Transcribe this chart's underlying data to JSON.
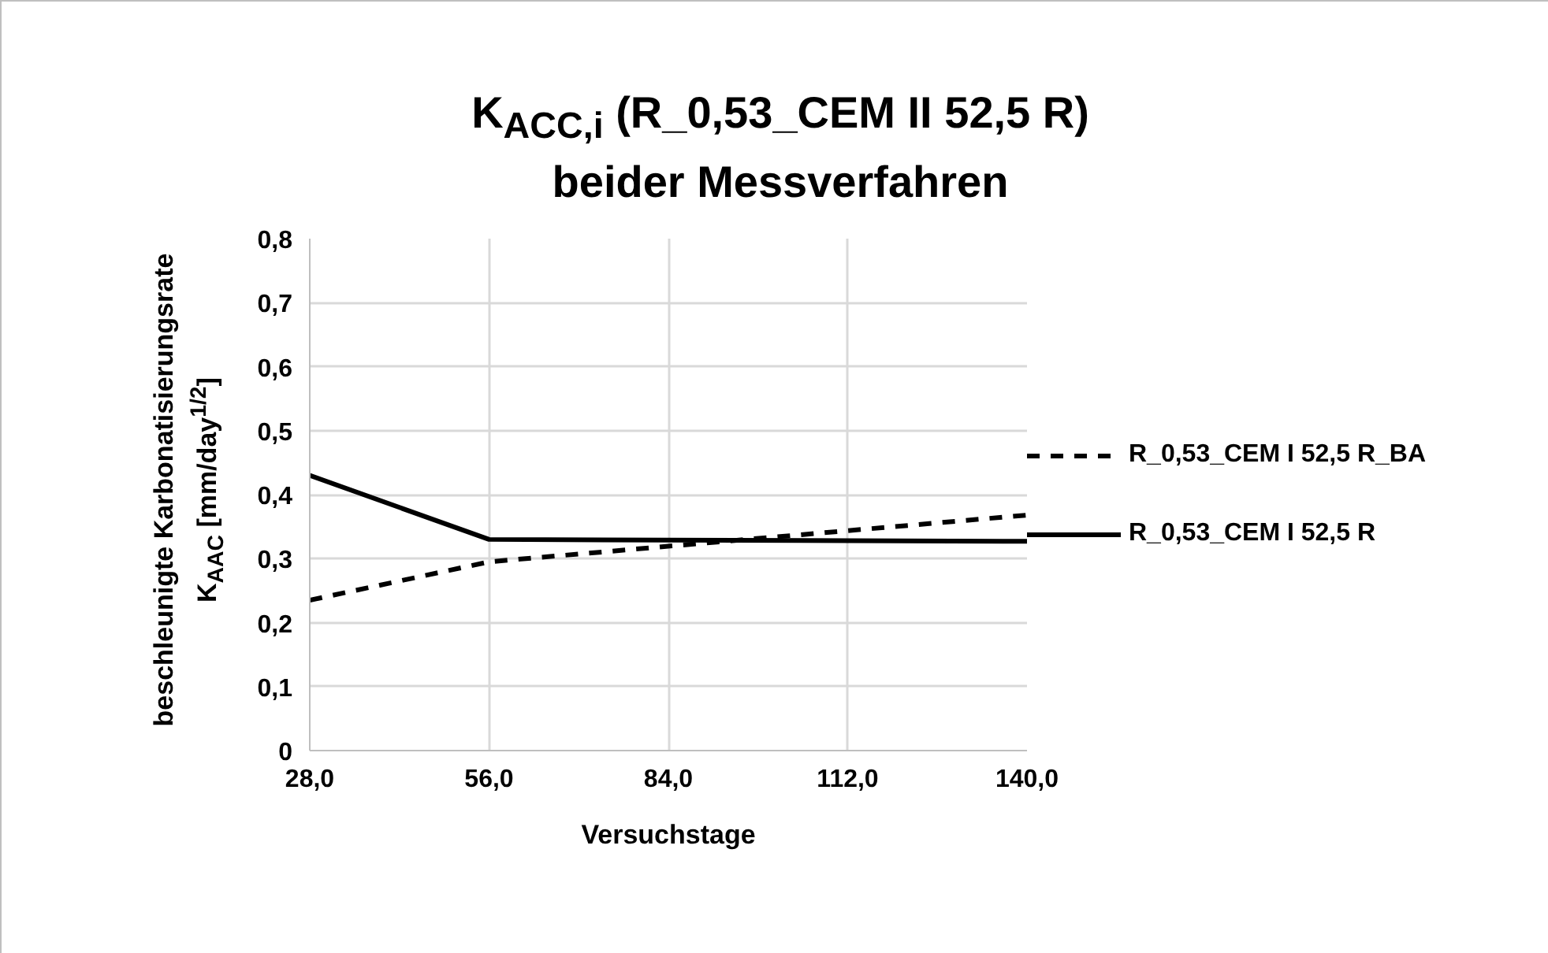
{
  "chart_data": {
    "type": "line",
    "title": "K$_{ACC,i}$ (R_0,53_CEM II 52,5 R)",
    "subtitle": "beider Messverfahren",
    "xlabel": "Versuchstage",
    "ylabel": "beschleunigte Karbonatisierungsrate\nK$_{AAC}$ [mm/day$^{1/2}$]",
    "x": [
      28,
      56,
      140
    ],
    "series": [
      {
        "name": "R_0,53_CEM I 52,5 R_BA",
        "color": "#000000",
        "line_style": "dashed",
        "values": [
          0.235,
          0.295,
          0.368
        ]
      },
      {
        "name": "R_0,53_CEM I 52,5 R",
        "color": "#000000",
        "line_style": "solid",
        "values": [
          0.43,
          0.33,
          0.327
        ]
      }
    ],
    "xlim": [
      28,
      140
    ],
    "ylim": [
      0,
      0.8
    ],
    "xticks": [
      {
        "value": 28,
        "label": "28,0"
      },
      {
        "value": 56,
        "label": "56,0"
      },
      {
        "value": 84,
        "label": "84,0"
      },
      {
        "value": 112,
        "label": "112,0"
      },
      {
        "value": 140,
        "label": "140,0"
      }
    ],
    "yticks": [
      0,
      {
        "value": 0.1,
        "label": "0,1"
      },
      {
        "value": 0.2,
        "label": "0,2"
      },
      {
        "value": 0.3,
        "label": "0,3"
      },
      {
        "value": 0.4,
        "label": "0,4"
      },
      {
        "value": 0.5,
        "label": "0,5"
      },
      {
        "value": 0.6,
        "label": "0,6"
      },
      {
        "value": 0.7,
        "label": "0,7"
      },
      {
        "value": 0.8,
        "label": "0,8"
      }
    ],
    "grid": true,
    "legend": "right"
  }
}
